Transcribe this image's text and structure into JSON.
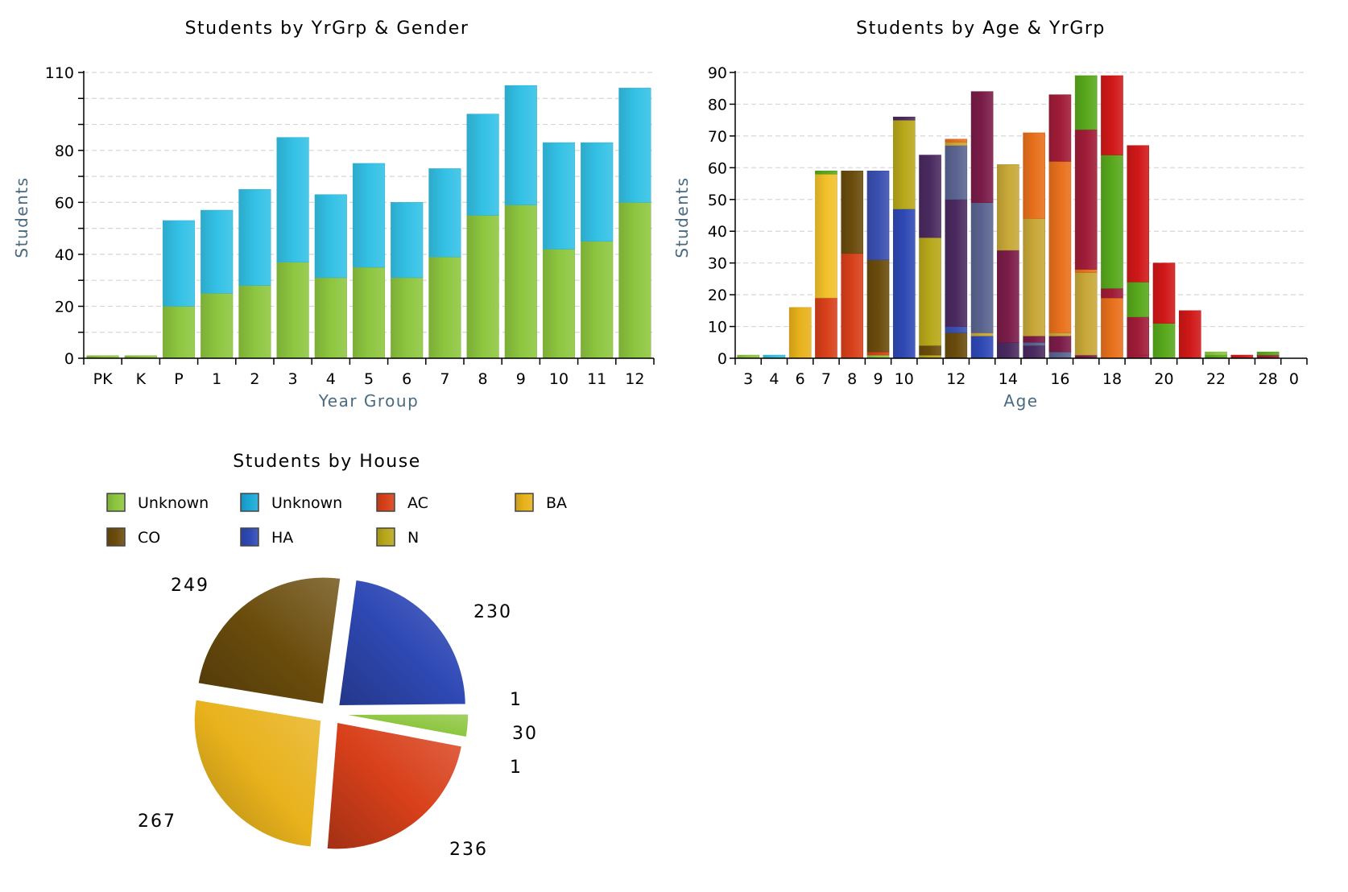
{
  "chart_data": [
    {
      "type": "bar",
      "stacked": true,
      "title": "Students by YrGrp & Gender",
      "xlabel": "Year Group",
      "ylabel": "Students",
      "ylim": [
        0,
        110
      ],
      "ytick_labels": [
        "0",
        "20",
        "40",
        "60",
        "80",
        "110"
      ],
      "ytick_values": [
        0,
        20,
        40,
        60,
        80,
        110
      ],
      "grid": true,
      "categories": [
        "PK",
        "K",
        "P",
        "1",
        "2",
        "3",
        "4",
        "5",
        "6",
        "7",
        "8",
        "9",
        "10",
        "11",
        "12"
      ],
      "series": [
        {
          "color": "#8dc63f",
          "values": [
            1,
            1,
            20,
            25,
            28,
            37,
            31,
            35,
            31,
            39,
            55,
            59,
            42,
            45,
            60
          ]
        },
        {
          "color": "#33c1e6",
          "values": [
            0,
            0,
            33,
            32,
            37,
            48,
            32,
            40,
            29,
            34,
            39,
            46,
            41,
            38,
            44
          ]
        }
      ]
    },
    {
      "type": "bar",
      "stacked": true,
      "title": "Students by Age & YrGrp",
      "xlabel": "Age",
      "ylabel": "Students",
      "ylim": [
        0,
        90
      ],
      "ytick_labels": [
        "0",
        "10",
        "20",
        "30",
        "40",
        "50",
        "60",
        "70",
        "80",
        "90"
      ],
      "ytick_values": [
        0,
        10,
        20,
        30,
        40,
        50,
        60,
        70,
        80,
        90
      ],
      "grid": true,
      "categories": [
        "3",
        "4",
        "6",
        "7",
        "8",
        "9",
        "10",
        "11",
        "12",
        "13",
        "14",
        "15",
        "16",
        "17",
        "18",
        "19",
        "20",
        "21",
        "22",
        "23",
        "28",
        "0"
      ],
      "xtick_labels": [
        "3",
        "4",
        "6",
        "7",
        "8",
        "9",
        "10",
        "",
        "12",
        "",
        "14",
        "",
        "16",
        "",
        "18",
        "",
        "20",
        "",
        "22",
        "",
        "28",
        "0"
      ],
      "stacks": [
        [
          {
            "v": 1,
            "c": "#8dc63f"
          }
        ],
        [
          {
            "v": 1,
            "c": "#33c1e6"
          }
        ],
        [
          {
            "v": 16,
            "c": "#e8b21c"
          }
        ],
        [
          {
            "v": 19,
            "c": "#d8401a"
          },
          {
            "v": 39,
            "c": "#f2c12a"
          },
          {
            "v": 1,
            "c": "#58a81c"
          }
        ],
        [
          {
            "v": 33,
            "c": "#d8401a"
          },
          {
            "v": 26,
            "c": "#6a4c0c"
          }
        ],
        [
          {
            "v": 1,
            "c": "#8dc63f"
          },
          {
            "v": 1,
            "c": "#d8401a"
          },
          {
            "v": 29,
            "c": "#6a4c0c"
          },
          {
            "v": 28,
            "c": "#3a50b0"
          }
        ],
        [
          {
            "v": 47,
            "c": "#2f49b5"
          },
          {
            "v": 28,
            "c": "#b8a81a"
          },
          {
            "v": 1,
            "c": "#4a2a60"
          }
        ],
        [
          {
            "v": 1,
            "c": "#b8a81a"
          },
          {
            "v": 3,
            "c": "#6a4c0c"
          },
          {
            "v": 34,
            "c": "#b8a81a"
          },
          {
            "v": 26,
            "c": "#4a2a60"
          }
        ],
        [
          {
            "v": 8,
            "c": "#6a4c0c"
          },
          {
            "v": 2,
            "c": "#3a50b0"
          },
          {
            "v": 40,
            "c": "#4a2a60"
          },
          {
            "v": 17,
            "c": "#5a6490"
          },
          {
            "v": 1,
            "c": "#c8a838"
          },
          {
            "v": 1,
            "c": "#e8701c"
          }
        ],
        [
          {
            "v": 7,
            "c": "#2f49b5"
          },
          {
            "v": 1,
            "c": "#c8a838"
          },
          {
            "v": 41,
            "c": "#5a6490"
          },
          {
            "v": 35,
            "c": "#7a1c48"
          }
        ],
        [
          {
            "v": 5,
            "c": "#4a2a60"
          },
          {
            "v": 29,
            "c": "#7a1c48"
          },
          {
            "v": 27,
            "c": "#c8a838"
          }
        ],
        [
          {
            "v": 4,
            "c": "#4a2a60"
          },
          {
            "v": 1,
            "c": "#5a6490"
          },
          {
            "v": 2,
            "c": "#7a1c48"
          },
          {
            "v": 37,
            "c": "#c8a838"
          },
          {
            "v": 27,
            "c": "#e8701c"
          }
        ],
        [
          {
            "v": 2,
            "c": "#5a6490"
          },
          {
            "v": 5,
            "c": "#7a1c48"
          },
          {
            "v": 1,
            "c": "#c8a838"
          },
          {
            "v": 54,
            "c": "#e8701c"
          },
          {
            "v": 21,
            "c": "#a01c38"
          }
        ],
        [
          {
            "v": 1,
            "c": "#7a1c48"
          },
          {
            "v": 26,
            "c": "#c8a838"
          },
          {
            "v": 1,
            "c": "#e8701c"
          },
          {
            "v": 44,
            "c": "#a01c38"
          },
          {
            "v": 17,
            "c": "#58a81c"
          }
        ],
        [
          {
            "v": 19,
            "c": "#e8701c"
          },
          {
            "v": 3,
            "c": "#a01c38"
          },
          {
            "v": 42,
            "c": "#58a81c"
          },
          {
            "v": 25,
            "c": "#d01818"
          }
        ],
        [
          {
            "v": 1,
            "c": "#a01c38"
          },
          {
            "v": 12,
            "c": "#a01c38"
          },
          {
            "v": 11,
            "c": "#58a81c"
          },
          {
            "v": 43,
            "c": "#d01818"
          }
        ],
        [
          {
            "v": 11,
            "c": "#58a81c"
          },
          {
            "v": 19,
            "c": "#d01818"
          }
        ],
        [
          {
            "v": 15,
            "c": "#d01818"
          }
        ],
        [
          {
            "v": 1,
            "c": "#58a81c"
          },
          {
            "v": 1,
            "c": "#8dc63f"
          }
        ],
        [
          {
            "v": 1,
            "c": "#d01818"
          }
        ],
        [
          {
            "v": 1,
            "c": "#a01c38"
          },
          {
            "v": 1,
            "c": "#58a81c"
          }
        ],
        [
          {
            "v": 0,
            "c": "#888888"
          }
        ]
      ]
    },
    {
      "type": "pie",
      "title": "Students by House",
      "legend_position": "top",
      "slices": [
        {
          "name": "Unknown",
          "value": 30,
          "label": "30",
          "color": "#8dc63f"
        },
        {
          "name": "Unknown",
          "value": 1,
          "label": "1",
          "color": "#1ca8d8"
        },
        {
          "name": "AC",
          "value": 236,
          "label": "236",
          "color": "#d8401a"
        },
        {
          "name": "BA",
          "value": 267,
          "label": "267",
          "color": "#e8b21c"
        },
        {
          "name": "CO",
          "value": 249,
          "label": "249",
          "color": "#6a4c0c"
        },
        {
          "name": "HA",
          "value": 230,
          "label": "230",
          "color": "#2f49b5"
        },
        {
          "name": "N",
          "value": 1,
          "label": "1",
          "color": "#b8a81a"
        }
      ]
    }
  ]
}
